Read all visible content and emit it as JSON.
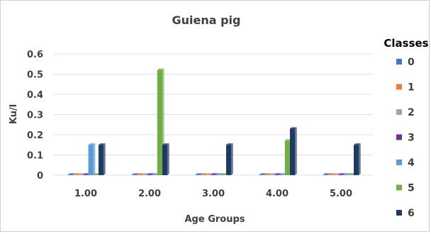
{
  "chart_data": {
    "type": "bar",
    "title": "Guiena pig",
    "xlabel": "Age Groups",
    "ylabel": "Ku/l",
    "ylim": [
      0,
      0.6
    ],
    "yticks": [
      "0",
      "0.1",
      "0.2",
      "0.3",
      "0.4",
      "0.5",
      "0.6"
    ],
    "categories": [
      "1.00",
      "2.00",
      "3.00",
      "4.00",
      "5.00"
    ],
    "legend_title": "Classes",
    "legend_position": "right",
    "grid": true,
    "series": [
      {
        "name": "0",
        "color": "#4472C4",
        "values": [
          0,
          0,
          0,
          0,
          0
        ]
      },
      {
        "name": "1",
        "color": "#ED7D31",
        "values": [
          0,
          0,
          0,
          0,
          0
        ]
      },
      {
        "name": "2",
        "color": "#A5A5A5",
        "values": [
          0,
          0,
          0,
          0,
          0
        ]
      },
      {
        "name": "3",
        "color": "#7030A0",
        "values": [
          0,
          0,
          0,
          0,
          0
        ]
      },
      {
        "name": "4",
        "color": "#5B9BD5",
        "values": [
          0.15,
          0,
          0,
          0,
          0
        ]
      },
      {
        "name": "5",
        "color": "#70AD47",
        "values": [
          0,
          0.52,
          0,
          0.17,
          0
        ]
      },
      {
        "name": "6",
        "color": "#1F3864",
        "values": [
          0.15,
          0.15,
          0.15,
          0.23,
          0.15
        ]
      }
    ]
  }
}
